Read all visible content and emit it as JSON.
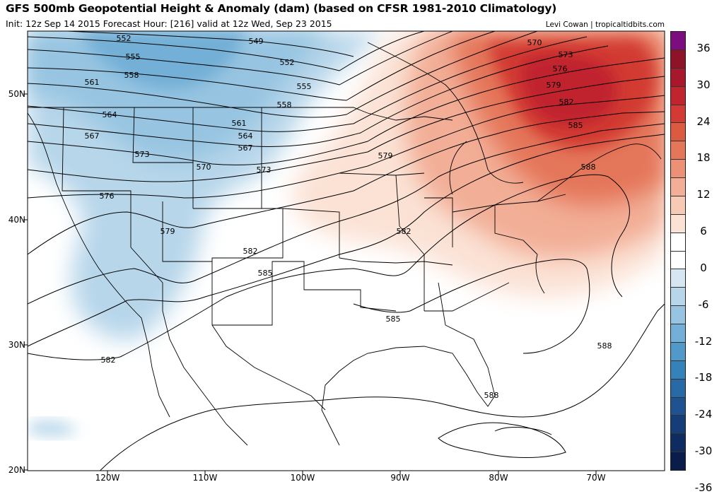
{
  "header": {
    "title": "GFS 500mb Geopotential Height & Anomaly (dam) (based on CFSR 1981-2010 Climatology)",
    "subtitle": "Init: 12z Sep 14 2015   Forecast Hour: [216]   valid at 12z Wed, Sep 23 2015",
    "credit": "Levi Cowan | tropicaltidbits.com"
  },
  "axes": {
    "lat_labels": [
      "50N",
      "40N",
      "30N",
      "20N"
    ],
    "lon_labels": [
      "120W",
      "110W",
      "100W",
      "90W",
      "80W",
      "70W"
    ]
  },
  "colorbar": {
    "labels": [
      "36",
      "30",
      "24",
      "18",
      "12",
      "6",
      "0",
      "-6",
      "-12",
      "-18",
      "-24",
      "-30",
      "-36"
    ],
    "colors": [
      "#7b0d7f",
      "#8e1228",
      "#a8182c",
      "#c0242f",
      "#d23a33",
      "#db5a40",
      "#e4765a",
      "#ec9176",
      "#f2ae96",
      "#f7cab6",
      "#fbe2d5",
      "#ffffff",
      "#ffffff",
      "#d6e7f2",
      "#b7d6ea",
      "#96c4e1",
      "#73afd6",
      "#5199c9",
      "#3582bb",
      "#286aa6",
      "#1e5290",
      "#153d77",
      "#0f2c60",
      "#0a1d4a"
    ]
  },
  "contours": {
    "labels": [
      "549",
      "552",
      "552",
      "555",
      "555",
      "558",
      "558",
      "561",
      "561",
      "564",
      "564",
      "567",
      "567",
      "570",
      "570",
      "573",
      "573",
      "573",
      "576",
      "576",
      "579",
      "579",
      "579",
      "582",
      "582",
      "582",
      "582",
      "585",
      "585",
      "585",
      "588",
      "588",
      "588"
    ]
  }
}
